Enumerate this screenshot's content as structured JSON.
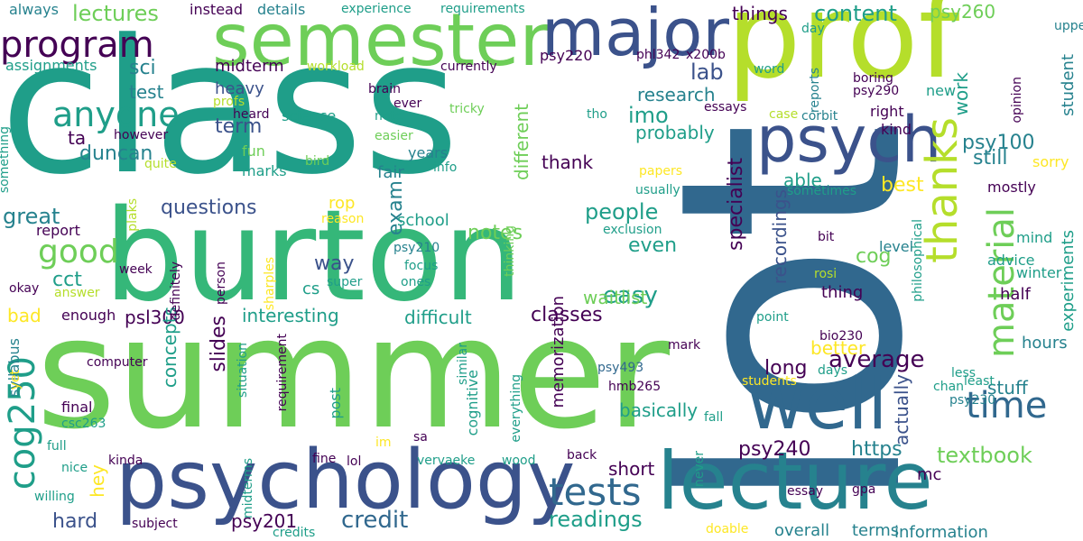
{
  "palette": {
    "dark_purple": "#440154",
    "indigo": "#3b528b",
    "blue": "#31688e",
    "teal_blue": "#26828e",
    "teal": "#1f9e89",
    "green": "#35b779",
    "light_green": "#6ece58",
    "lime": "#b5de2b",
    "yellow": "#fde725",
    "background": "#ffffff"
  },
  "words": [
    "class",
    "lot",
    "summer",
    "prof",
    "burton",
    "semester",
    "psychology",
    "lecture",
    "well",
    "psych",
    "major",
    "program",
    "anyone",
    "thanks",
    "time",
    "material",
    "tests",
    "cog250",
    "good",
    "lectures",
    "specialist",
    "credit",
    "easy",
    "notes",
    "people",
    "classes",
    "slides",
    "questions",
    "content",
    "term",
    "average",
    "textbook",
    "long",
    "readings",
    "lab",
    "still",
    "exam",
    "great",
    "duncan",
    "research",
    "sci",
    "test",
    "imo",
    "cog",
    "best",
    "even",
    "psy240",
    "psy100",
    "cct",
    "hard",
    "way",
    "interesting",
    "difficult",
    "psl300",
    "psy201",
    "probably",
    "things",
    "different",
    "https",
    "waitlist",
    "short",
    "basically",
    "recordings",
    "stuff",
    "bad",
    "concepts",
    "student",
    "memorization",
    "psy260",
    "hey",
    "actually",
    "work",
    "heavy",
    "midterm",
    "thank",
    "better",
    "able",
    "ta",
    "rop",
    "experiments",
    "fair",
    "mc",
    "cs",
    "information",
    "terms",
    "school",
    "overall",
    "hours",
    "half",
    "thing",
    "cognitive",
    "details",
    "psy220",
    "kind",
    "right",
    "mostly",
    "level",
    "advice",
    "mind",
    "winter",
    "sorry",
    "assignments",
    "always",
    "instead",
    "experience",
    "requirements",
    "workload",
    "currently",
    "brain",
    "ever",
    "note",
    "easier",
    "tricky",
    "phl342",
    "x200b",
    "boring",
    "word",
    "opinion",
    "upper",
    "new",
    "day",
    "reports",
    "psy290",
    "essays",
    "tho",
    "case",
    "corbit",
    "profs",
    "heard",
    "however",
    "fun",
    "marks",
    "years",
    "info",
    "bird",
    "quite",
    "science",
    "something",
    "papers",
    "usually",
    "sometimes",
    "plaks",
    "report",
    "reason",
    "exclusion",
    "psy210",
    "week",
    "person",
    "focus",
    "ones",
    "thinking",
    "super",
    "okay",
    "answer",
    "definitely",
    "sharples",
    "philosophical",
    "bit",
    "rosi",
    "point",
    "enough",
    "syllabus",
    "computer",
    "situation",
    "requirement",
    "post",
    "similar",
    "everything",
    "mark",
    "days",
    "bio230",
    "psy493",
    "less",
    "least",
    "chan",
    "psy230",
    "students",
    "hmb265",
    "never",
    "fall",
    "final",
    "yet",
    "csc263",
    "full",
    "nice",
    "willing",
    "kinda",
    "subject",
    "credits",
    "midterms",
    "fine",
    "lol",
    "im",
    "sa",
    "vervaeke",
    "wood",
    "back",
    "doable",
    "essay",
    "gpa"
  ]
}
